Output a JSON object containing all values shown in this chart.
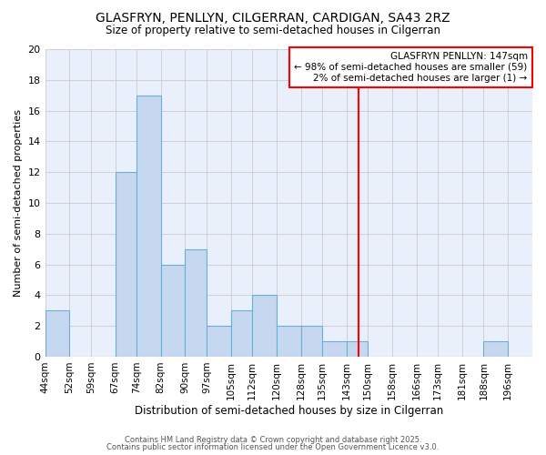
{
  "title": "GLASFRYN, PENLLYN, CILGERRAN, CARDIGAN, SA43 2RZ",
  "subtitle": "Size of property relative to semi-detached houses in Cilgerran",
  "xlabel": "Distribution of semi-detached houses by size in Cilgerran",
  "ylabel": "Number of semi-detached properties",
  "bin_labels": [
    "44sqm",
    "52sqm",
    "59sqm",
    "67sqm",
    "74sqm",
    "82sqm",
    "90sqm",
    "97sqm",
    "105sqm",
    "112sqm",
    "120sqm",
    "128sqm",
    "135sqm",
    "143sqm",
    "150sqm",
    "158sqm",
    "166sqm",
    "173sqm",
    "181sqm",
    "188sqm",
    "196sqm"
  ],
  "bin_edges": [
    44,
    52,
    59,
    67,
    74,
    82,
    90,
    97,
    105,
    112,
    120,
    128,
    135,
    143,
    150,
    158,
    166,
    173,
    181,
    188,
    196,
    204
  ],
  "counts": [
    3,
    0,
    0,
    12,
    17,
    6,
    7,
    2,
    3,
    4,
    2,
    2,
    1,
    1,
    0,
    0,
    0,
    0,
    0,
    1,
    0
  ],
  "bar_color": "#c5d8f0",
  "bar_edge_color": "#6aaed6",
  "vline_x": 147,
  "vline_color": "red",
  "annotation_title": "GLASFRYN PENLLYN: 147sqm",
  "annotation_line1": "← 98% of semi-detached houses are smaller (59)",
  "annotation_line2": "2% of semi-detached houses are larger (1) →",
  "ylim": [
    0,
    20
  ],
  "yticks": [
    0,
    2,
    4,
    6,
    8,
    10,
    12,
    14,
    16,
    18,
    20
  ],
  "background_color": "#eaf0fb",
  "grid_color": "#cccccc",
  "footer1": "Contains HM Land Registry data © Crown copyright and database right 2025.",
  "footer2": "Contains public sector information licensed under the Open Government Licence v3.0."
}
